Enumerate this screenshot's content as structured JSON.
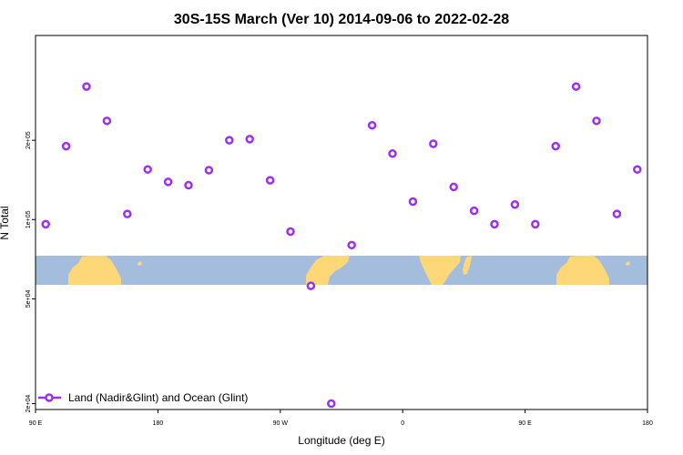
{
  "chart_data": {
    "type": "scatter",
    "title": "30S-15S March (Ver 10)   2014-09-06 to 2022-02-28",
    "xlabel": "Longitude (deg E)",
    "ylabel": "N Total",
    "x_ticks": [
      {
        "value": 90,
        "label": "90 E"
      },
      {
        "value": 180,
        "label": "180"
      },
      {
        "value": 270,
        "label": "90 W"
      },
      {
        "value": 360,
        "label": "0"
      },
      {
        "value": 450,
        "label": "90 E"
      },
      {
        "value": 540,
        "label": "180"
      }
    ],
    "xlim": [
      90,
      540
    ],
    "y_scale": "log",
    "ylim": [
      19000,
      500000
    ],
    "y_ticks": [
      {
        "value": 20000,
        "label": "2e+04"
      },
      {
        "value": 50000,
        "label": "5e+04"
      },
      {
        "value": 100000,
        "label": "1e+05"
      },
      {
        "value": 200000,
        "label": "2e+05"
      }
    ],
    "series": [
      {
        "name": "Land (Nadir&Glint) and Ocean (Glint)",
        "color": "#9b30f0",
        "marker": "open-circle",
        "points": [
          {
            "x": 97.5,
            "y": 96000
          },
          {
            "x": 112.5,
            "y": 190000
          },
          {
            "x": 127.5,
            "y": 320000
          },
          {
            "x": 142.5,
            "y": 237000
          },
          {
            "x": 157.5,
            "y": 105000
          },
          {
            "x": 172.5,
            "y": 155000
          },
          {
            "x": 187.5,
            "y": 139000
          },
          {
            "x": 202.5,
            "y": 135000
          },
          {
            "x": 217.5,
            "y": 154000
          },
          {
            "x": 232.5,
            "y": 200000
          },
          {
            "x": 247.5,
            "y": 202000
          },
          {
            "x": 262.5,
            "y": 141000
          },
          {
            "x": 277.5,
            "y": 90000
          },
          {
            "x": 292.5,
            "y": 56000
          },
          {
            "x": 307.5,
            "y": 20000
          },
          {
            "x": 322.5,
            "y": 80000
          },
          {
            "x": 337.5,
            "y": 228000
          },
          {
            "x": 352.5,
            "y": 178000
          },
          {
            "x": 367.5,
            "y": 117000
          },
          {
            "x": 382.5,
            "y": 194000
          },
          {
            "x": 397.5,
            "y": 133000
          },
          {
            "x": 412.5,
            "y": 108000
          },
          {
            "x": 427.5,
            "y": 96000
          },
          {
            "x": 442.5,
            "y": 114000
          },
          {
            "x": 457.5,
            "y": 96000
          },
          {
            "x": 472.5,
            "y": 190000
          },
          {
            "x": 487.5,
            "y": 320000
          },
          {
            "x": 502.5,
            "y": 237000
          },
          {
            "x": 517.5,
            "y": 105000
          },
          {
            "x": 532.5,
            "y": 155000
          }
        ]
      }
    ],
    "legend": {
      "position": "bottom-left"
    },
    "map_strip": {
      "ocean_color": "#a5bddc",
      "land_color": "#fed779",
      "lat_range": "30S-15S"
    }
  }
}
